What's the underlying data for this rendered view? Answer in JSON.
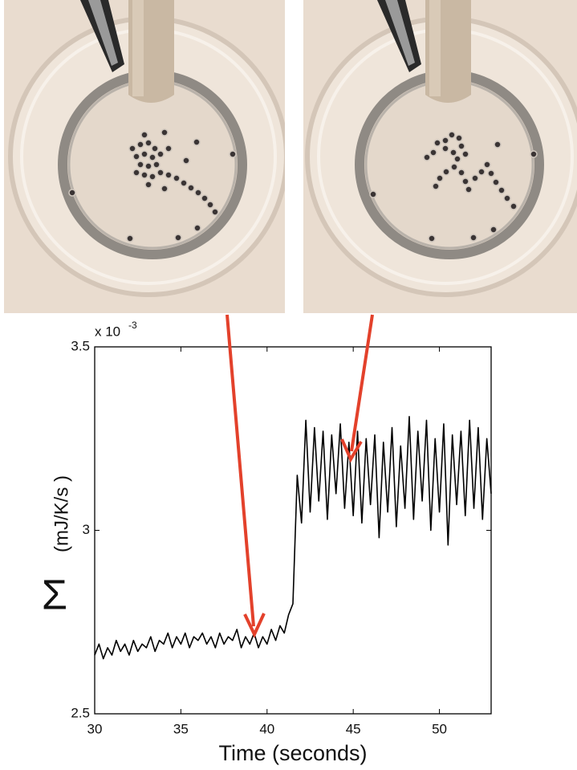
{
  "chart_data": {
    "type": "line",
    "x_label": "Time (seconds)",
    "y_label_symbol": "Σ",
    "y_label_units": "(mJ/K/s )",
    "y_scale_base": "x 10",
    "y_scale_exponent": "-3",
    "xlim": [
      30,
      53
    ],
    "xticks": [
      30,
      35,
      40,
      45,
      50
    ],
    "ylim": [
      2.5,
      3.5
    ],
    "yticks": [
      2.5,
      3,
      3.5
    ],
    "grid": false,
    "x": [
      30,
      30.25,
      30.5,
      30.75,
      31,
      31.25,
      31.5,
      31.75,
      32,
      32.25,
      32.5,
      32.75,
      33,
      33.25,
      33.5,
      33.75,
      34,
      34.25,
      34.5,
      34.75,
      35,
      35.25,
      35.5,
      35.75,
      36,
      36.25,
      36.5,
      36.75,
      37,
      37.25,
      37.5,
      37.75,
      38,
      38.25,
      38.5,
      38.75,
      39,
      39.25,
      39.5,
      39.75,
      40,
      40.25,
      40.5,
      40.75,
      41,
      41.25,
      41.5,
      41.75,
      42,
      42.25,
      42.5,
      42.75,
      43,
      43.25,
      43.5,
      43.75,
      44,
      44.25,
      44.5,
      44.75,
      45,
      45.25,
      45.5,
      45.75,
      46,
      46.25,
      46.5,
      46.75,
      47,
      47.25,
      47.5,
      47.75,
      48,
      48.25,
      48.5,
      48.75,
      49,
      49.25,
      49.5,
      49.75,
      50,
      50.25,
      50.5,
      50.75,
      51,
      51.25,
      51.5,
      51.75,
      52,
      52.25,
      52.5,
      52.75,
      53
    ],
    "series": [
      {
        "color": "#000000",
        "values": [
          2.66,
          2.69,
          2.65,
          2.68,
          2.66,
          2.7,
          2.67,
          2.69,
          2.66,
          2.7,
          2.67,
          2.69,
          2.68,
          2.71,
          2.67,
          2.7,
          2.69,
          2.72,
          2.68,
          2.71,
          2.69,
          2.72,
          2.68,
          2.71,
          2.7,
          2.72,
          2.69,
          2.71,
          2.68,
          2.72,
          2.69,
          2.71,
          2.7,
          2.73,
          2.68,
          2.71,
          2.69,
          2.72,
          2.68,
          2.71,
          2.69,
          2.73,
          2.7,
          2.74,
          2.72,
          2.77,
          2.8,
          3.15,
          3.02,
          3.3,
          3.05,
          3.28,
          3.08,
          3.27,
          3.03,
          3.26,
          3.1,
          3.29,
          3.06,
          3.24,
          3.04,
          3.27,
          3.02,
          3.25,
          3.07,
          3.26,
          2.98,
          3.24,
          3.05,
          3.28,
          3.01,
          3.23,
          3.06,
          3.31,
          3.03,
          3.27,
          3.08,
          3.3,
          3.0,
          3.25,
          3.05,
          3.29,
          2.96,
          3.26,
          3.07,
          3.27,
          3.04,
          3.3,
          3.06,
          3.28,
          3.03,
          3.25,
          3.1
        ]
      }
    ]
  }
}
